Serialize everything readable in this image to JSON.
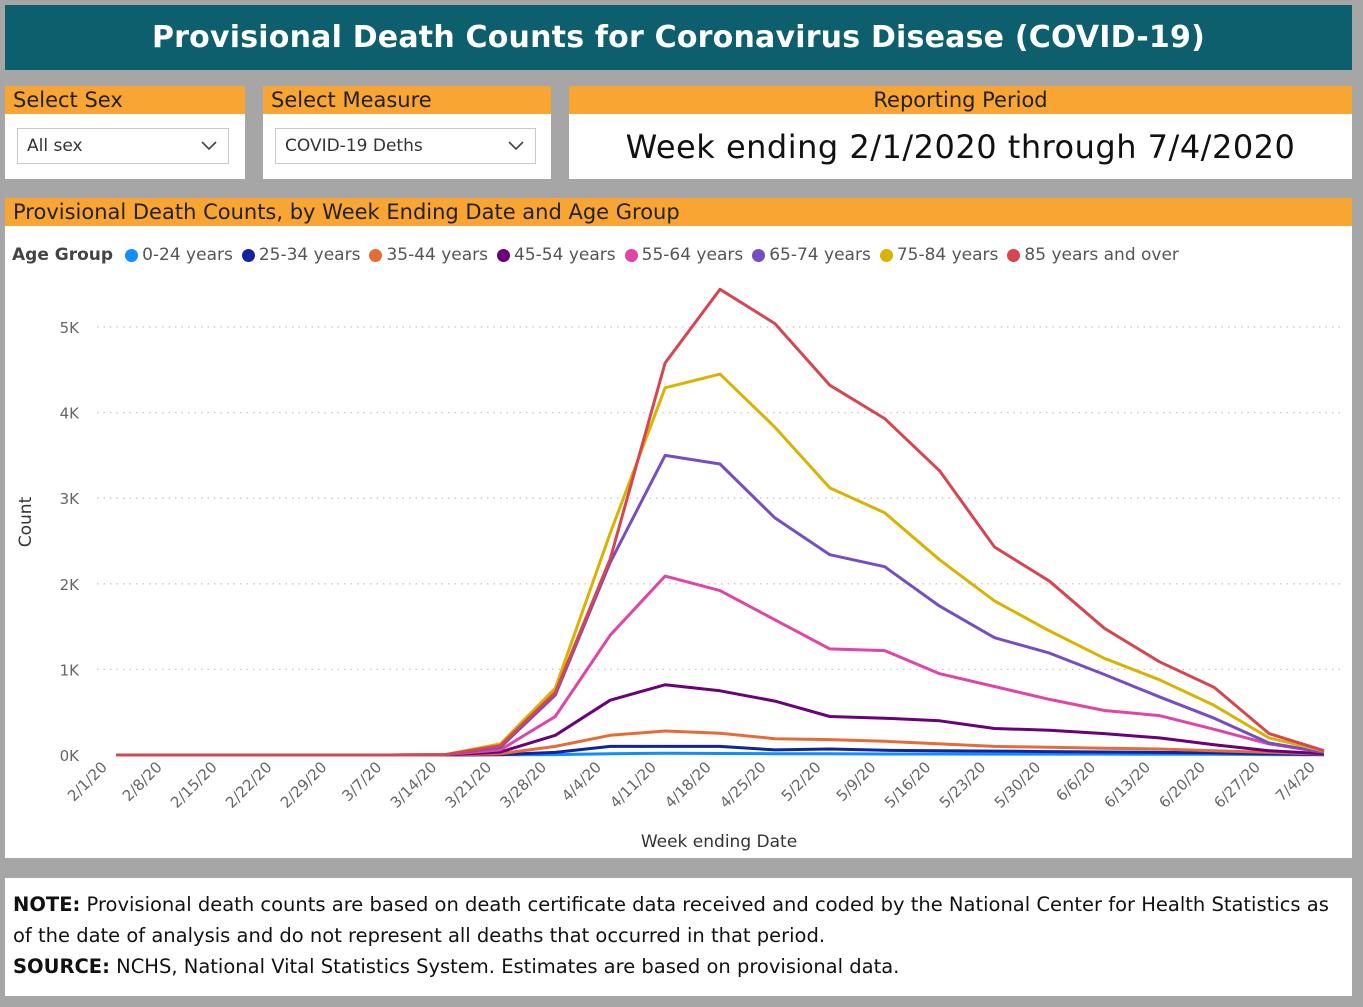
{
  "header": {
    "title": "Provisional Death Counts for Coronavirus Disease (COVID-19)"
  },
  "filters": {
    "sex": {
      "label": "Select Sex",
      "value": "All sex"
    },
    "measure": {
      "label": "Select Measure",
      "value": "COVID-19 Deths"
    },
    "period": {
      "label": "Reporting Period",
      "value": "Week ending 2/1/2020 through 7/4/2020"
    }
  },
  "chart_panel": {
    "title": "Provisional Death Counts, by Week Ending Date and Age Group"
  },
  "chart_data": {
    "type": "line",
    "title": "Provisional Death Counts, by Week Ending Date and Age Group",
    "xlabel": "Week ending Date",
    "ylabel": "Count",
    "ylim": [
      0,
      5500
    ],
    "y_ticks": [
      "0K",
      "1K",
      "2K",
      "3K",
      "4K",
      "5K"
    ],
    "grid": "horizontal dotted",
    "legend_title": "Age Group",
    "legend_position": "top-left",
    "x": [
      "2/1/20",
      "2/8/20",
      "2/15/20",
      "2/22/20",
      "2/29/20",
      "3/7/20",
      "3/14/20",
      "3/21/20",
      "3/28/20",
      "4/4/20",
      "4/11/20",
      "4/18/20",
      "4/25/20",
      "5/2/20",
      "5/9/20",
      "5/16/20",
      "5/23/20",
      "5/30/20",
      "6/6/20",
      "6/13/20",
      "6/20/20",
      "6/27/20",
      "7/4/20"
    ],
    "series": [
      {
        "name": "0-24 years",
        "color": "#118dff",
        "values": [
          0,
          0,
          0,
          0,
          0,
          0,
          0,
          2,
          5,
          15,
          20,
          18,
          15,
          15,
          12,
          12,
          10,
          10,
          10,
          8,
          8,
          5,
          3
        ]
      },
      {
        "name": "25-34 years",
        "color": "#12239e",
        "values": [
          0,
          0,
          0,
          0,
          0,
          0,
          0,
          5,
          30,
          100,
          100,
          100,
          60,
          70,
          55,
          50,
          45,
          40,
          35,
          30,
          25,
          15,
          5
        ]
      },
      {
        "name": "35-44 years",
        "color": "#e66c37",
        "values": [
          0,
          0,
          0,
          0,
          0,
          0,
          0,
          15,
          100,
          230,
          280,
          255,
          190,
          180,
          160,
          130,
          100,
          90,
          80,
          70,
          50,
          30,
          10
        ]
      },
      {
        "name": "45-54 years",
        "color": "#6b007b",
        "values": [
          0,
          0,
          0,
          0,
          0,
          0,
          0,
          35,
          230,
          640,
          820,
          750,
          630,
          450,
          430,
          400,
          310,
          290,
          250,
          200,
          120,
          50,
          15
        ]
      },
      {
        "name": "55-64 years",
        "color": "#e044a7",
        "values": [
          0,
          0,
          0,
          0,
          0,
          0,
          5,
          60,
          450,
          1400,
          2090,
          1920,
          1580,
          1240,
          1220,
          950,
          800,
          650,
          520,
          460,
          300,
          130,
          30
        ]
      },
      {
        "name": "65-74 years",
        "color": "#744ec2",
        "values": [
          0,
          0,
          0,
          0,
          0,
          0,
          5,
          90,
          700,
          2250,
          3500,
          3400,
          2770,
          2340,
          2200,
          1740,
          1370,
          1190,
          940,
          680,
          430,
          140,
          30
        ]
      },
      {
        "name": "75-84 years",
        "color": "#d9b300",
        "values": [
          0,
          0,
          0,
          0,
          0,
          0,
          5,
          130,
          780,
          2590,
          4290,
          4450,
          3830,
          3120,
          2830,
          2280,
          1800,
          1450,
          1130,
          880,
          580,
          200,
          45
        ]
      },
      {
        "name": "85 years and over",
        "color": "#d64550",
        "values": [
          0,
          0,
          0,
          0,
          0,
          0,
          5,
          110,
          730,
          2290,
          4580,
          5440,
          5040,
          4320,
          3930,
          3320,
          2430,
          2030,
          1480,
          1090,
          790,
          250,
          50
        ]
      }
    ]
  },
  "footer": {
    "note_label": "NOTE:",
    "note_text": " Provisional death counts are based on death certificate data received and coded by the National Center for Health Statistics as of the date of analysis and do not represent all deaths that occurred in that period.",
    "source_label": "SOURCE:",
    "source_text": " NCHS, National Vital Statistics System. Estimates are based on provisional data."
  }
}
